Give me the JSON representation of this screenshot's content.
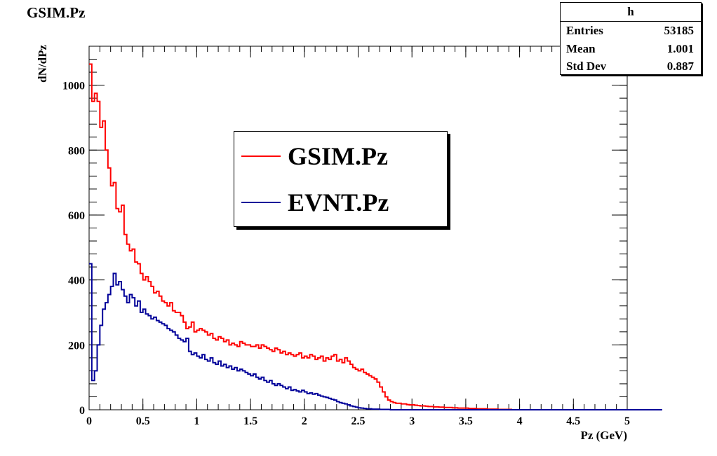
{
  "chart_data": {
    "type": "line",
    "title": "GSIM.Pz",
    "xlabel": "Pz (GeV)",
    "ylabel": "dN/dPz",
    "xlim": [
      0,
      5
    ],
    "ylim": [
      0,
      1120
    ],
    "x_ticks": [
      "0",
      "0.5",
      "1",
      "1.5",
      "2",
      "2.5",
      "3",
      "3.5",
      "4",
      "4.5",
      "5"
    ],
    "y_ticks": [
      "0",
      "200",
      "400",
      "600",
      "800",
      "1000"
    ],
    "bin_width": 0.025,
    "legend": {
      "placement": "center-top"
    },
    "grid": false,
    "series": [
      {
        "name": "GSIM.Pz",
        "color": "#ff0000",
        "values": [
          1065,
          950,
          975,
          950,
          870,
          890,
          800,
          745,
          690,
          700,
          620,
          610,
          630,
          540,
          510,
          490,
          495,
          455,
          450,
          420,
          400,
          410,
          395,
          380,
          360,
          365,
          350,
          335,
          330,
          320,
          330,
          305,
          300,
          300,
          290,
          270,
          250,
          255,
          270,
          240,
          245,
          250,
          245,
          240,
          230,
          235,
          220,
          215,
          225,
          220,
          210,
          215,
          200,
          205,
          200,
          195,
          210,
          205,
          200,
          200,
          195,
          195,
          200,
          190,
          200,
          195,
          190,
          185,
          180,
          190,
          185,
          175,
          180,
          170,
          175,
          170,
          165,
          170,
          175,
          160,
          165,
          160,
          170,
          165,
          155,
          160,
          165,
          150,
          160,
          155,
          165,
          170,
          150,
          155,
          145,
          160,
          150,
          140,
          130,
          125,
          120,
          125,
          115,
          110,
          105,
          100,
          95,
          85,
          70,
          55,
          40,
          30,
          25,
          22,
          20,
          20,
          18,
          18,
          16,
          15,
          15,
          14,
          13,
          12,
          12,
          11,
          10,
          10,
          9,
          9,
          8,
          8,
          7,
          7,
          7,
          6,
          6,
          5,
          5,
          5,
          5,
          4,
          4,
          4,
          3,
          3,
          3,
          3,
          2,
          2,
          2,
          2,
          1,
          1,
          1,
          1,
          1,
          0,
          0,
          0,
          0,
          0,
          0,
          0,
          0,
          0,
          0,
          0,
          0,
          0,
          0,
          0,
          0,
          0,
          0,
          0,
          0,
          0,
          0,
          0,
          0,
          0,
          0,
          0,
          0,
          0,
          0,
          0,
          0,
          0,
          0,
          0,
          0,
          0,
          0,
          0,
          0,
          0,
          0,
          0,
          0,
          0
        ]
      },
      {
        "name": "EVNT.Pz",
        "color": "#000099",
        "values": [
          450,
          90,
          120,
          200,
          260,
          310,
          330,
          355,
          380,
          420,
          385,
          395,
          370,
          350,
          330,
          355,
          345,
          320,
          335,
          300,
          310,
          295,
          290,
          280,
          285,
          275,
          270,
          265,
          260,
          250,
          245,
          240,
          230,
          220,
          215,
          210,
          220,
          180,
          170,
          175,
          165,
          160,
          170,
          155,
          150,
          160,
          145,
          140,
          150,
          135,
          140,
          130,
          135,
          125,
          130,
          120,
          125,
          120,
          115,
          110,
          105,
          110,
          100,
          95,
          100,
          90,
          85,
          90,
          80,
          75,
          80,
          75,
          70,
          65,
          70,
          60,
          62,
          58,
          55,
          60,
          55,
          50,
          52,
          48,
          50,
          45,
          42,
          40,
          38,
          35,
          32,
          30,
          25,
          22,
          20,
          18,
          15,
          12,
          10,
          8,
          6,
          5,
          4,
          3,
          3,
          2,
          2,
          2,
          1,
          1,
          1,
          1,
          0,
          0,
          0,
          0,
          0,
          0,
          0,
          0,
          0,
          0,
          0,
          0,
          0,
          0,
          0,
          0,
          0,
          0,
          0,
          0,
          0,
          0,
          0,
          0,
          0,
          0,
          0,
          0,
          0,
          0,
          0,
          0,
          0,
          0,
          0,
          0,
          0,
          0,
          0,
          0,
          0,
          0,
          0,
          0,
          0,
          0,
          0,
          0,
          0,
          0,
          0,
          0,
          0,
          0,
          0,
          0,
          0,
          0,
          0,
          0,
          0,
          0,
          0,
          0,
          0,
          0,
          0,
          0,
          0,
          0,
          0,
          0,
          0,
          0,
          0,
          0,
          0,
          0,
          0,
          0,
          0,
          0,
          0,
          0,
          0,
          0,
          0,
          0,
          0,
          0,
          0,
          0,
          0,
          0,
          0,
          0,
          0,
          0,
          0,
          0,
          0
        ]
      }
    ],
    "stats": {
      "name": "h",
      "entries_label": "Entries",
      "entries": "53185",
      "mean_label": "Mean",
      "mean": "1.001",
      "std_label": "Std Dev",
      "std": "0.887"
    }
  }
}
